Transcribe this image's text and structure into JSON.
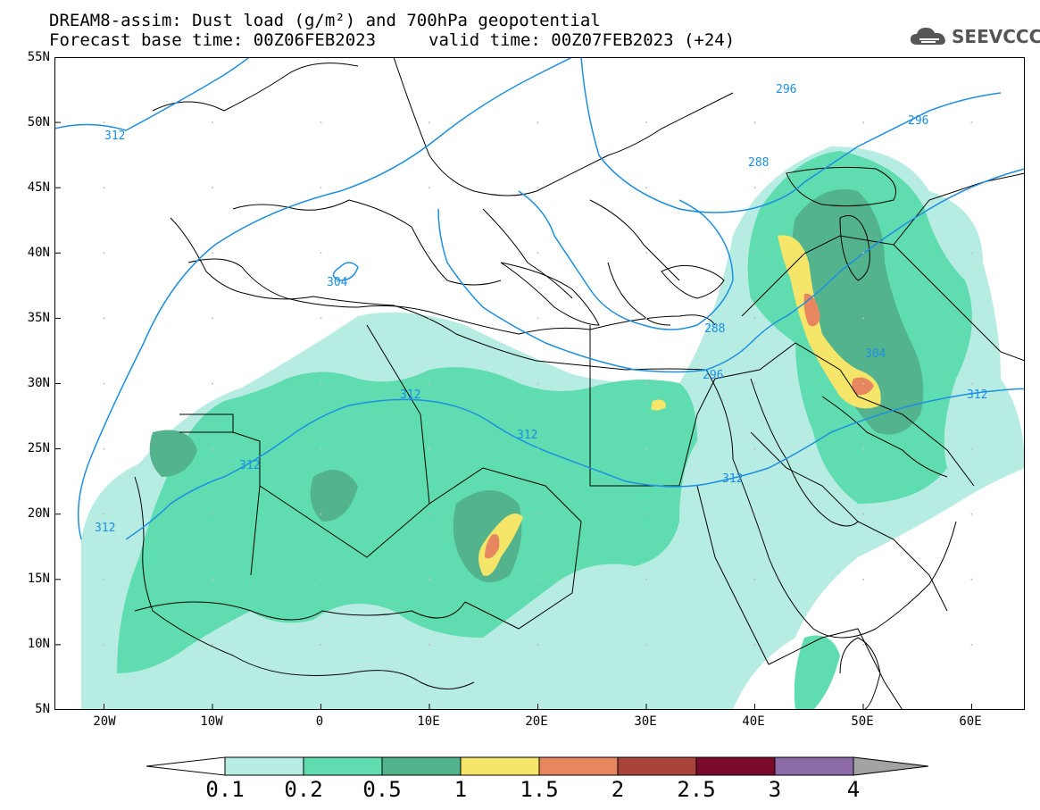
{
  "title": {
    "line1": "DREAM8-assim: Dust load (g/m²) and 700hPa geopotential",
    "line2_left": "Forecast base time: 00Z06FEB2023",
    "line2_right": "valid time: 00Z07FEB2023 (+24)"
  },
  "logo": {
    "text": "SEEVCCC",
    "icon": "cloud-icon"
  },
  "axes": {
    "y_ticks": [
      "55N",
      "50N",
      "45N",
      "40N",
      "35N",
      "30N",
      "25N",
      "20N",
      "15N",
      "10N",
      "5N"
    ],
    "x_ticks": [
      "20W",
      "10W",
      "0",
      "10E",
      "20E",
      "30E",
      "40E",
      "50E",
      "60E"
    ]
  },
  "contour_labels": [
    "296",
    "296",
    "288",
    "312",
    "304",
    "288",
    "296",
    "304",
    "312",
    "312",
    "312",
    "312",
    "312",
    "312"
  ],
  "colorbar": {
    "labels": [
      "0.1",
      "0.2",
      "0.5",
      "1",
      "1.5",
      "2",
      "2.5",
      "3",
      "4"
    ],
    "colors": [
      "#b7ece3",
      "#5fdcb0",
      "#52b38d",
      "#f5e66a",
      "#e7875f",
      "#a8443a",
      "#7a0a2c",
      "#8c6ba7"
    ],
    "under_color": "#ffffff",
    "over_color": "#a3a3a3"
  },
  "colors": {
    "contour": "#1e8fe0",
    "border": "#000000"
  }
}
